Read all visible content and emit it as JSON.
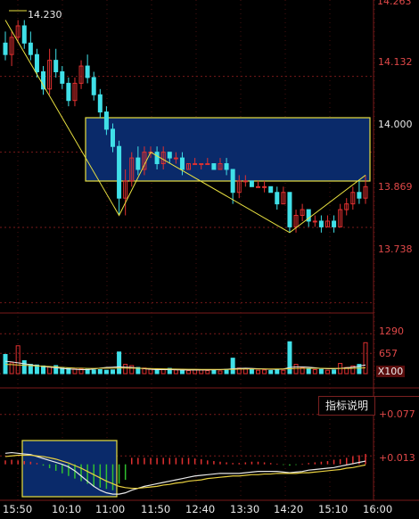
{
  "chart_data": [
    {
      "type": "candlestick",
      "title": "",
      "ylim": [
        13.72,
        14.265
      ],
      "y_ticks": [
        "13.738",
        "13.869",
        "14.000",
        "14.132"
      ],
      "top_partial_tick": "14.263",
      "high_marker": "14.230",
      "candles": [
        [
          14.19,
          14.17,
          14.21,
          14.16
        ],
        [
          14.17,
          14.2,
          14.21,
          14.15
        ],
        [
          14.2,
          14.22,
          14.23,
          14.19
        ],
        [
          14.22,
          14.19,
          14.23,
          14.18
        ],
        [
          14.19,
          14.17,
          14.21,
          14.16
        ],
        [
          14.17,
          14.14,
          14.18,
          14.13
        ],
        [
          14.14,
          14.11,
          14.15,
          14.1
        ],
        [
          14.11,
          14.16,
          14.18,
          14.1
        ],
        [
          14.16,
          14.14,
          14.18,
          14.13
        ],
        [
          14.14,
          14.12,
          14.15,
          14.11
        ],
        [
          14.12,
          14.09,
          14.13,
          14.08
        ],
        [
          14.09,
          14.12,
          14.13,
          14.08
        ],
        [
          14.12,
          14.15,
          14.16,
          14.11
        ],
        [
          14.15,
          14.13,
          14.17,
          14.12
        ],
        [
          14.13,
          14.1,
          14.14,
          14.09
        ],
        [
          14.1,
          14.07,
          14.11,
          14.06
        ],
        [
          14.07,
          14.04,
          14.08,
          14.03
        ],
        [
          14.04,
          14.01,
          14.05,
          14.0
        ],
        [
          14.01,
          13.92,
          14.02,
          13.89
        ],
        [
          13.92,
          13.95,
          13.97,
          13.89
        ],
        [
          13.95,
          13.99,
          14.0,
          13.94
        ],
        [
          13.99,
          13.97,
          14.01,
          13.96
        ],
        [
          13.97,
          14.0,
          14.01,
          13.96
        ],
        [
          14.0,
          14.0,
          14.01,
          13.99
        ],
        [
          14.0,
          13.98,
          14.01,
          13.97
        ],
        [
          13.98,
          14.0,
          14.01,
          13.97
        ],
        [
          14.0,
          13.99,
          14.0,
          13.98
        ],
        [
          13.99,
          13.99,
          14.0,
          13.98
        ],
        [
          13.99,
          13.97,
          14.0,
          13.96
        ],
        [
          13.97,
          13.98,
          13.98,
          13.97
        ],
        [
          13.98,
          13.98,
          13.99,
          13.98
        ],
        [
          13.98,
          13.98,
          13.98,
          13.97
        ],
        [
          13.98,
          13.98,
          13.99,
          13.98
        ],
        [
          13.98,
          13.97,
          13.98,
          13.97
        ],
        [
          13.97,
          13.98,
          13.99,
          13.97
        ],
        [
          13.98,
          13.97,
          13.99,
          13.96
        ],
        [
          13.97,
          13.93,
          13.97,
          13.91
        ],
        [
          13.93,
          13.95,
          13.96,
          13.92
        ],
        [
          13.95,
          13.95,
          13.96,
          13.94
        ],
        [
          13.95,
          13.94,
          13.95,
          13.94
        ],
        [
          13.94,
          13.94,
          13.95,
          13.94
        ],
        [
          13.94,
          13.94,
          13.95,
          13.93
        ],
        [
          13.94,
          13.93,
          13.94,
          13.93
        ],
        [
          13.93,
          13.91,
          13.94,
          13.9
        ],
        [
          13.91,
          13.93,
          13.94,
          13.91
        ],
        [
          13.93,
          13.87,
          13.93,
          13.86
        ],
        [
          13.87,
          13.89,
          13.9,
          13.86
        ],
        [
          13.89,
          13.9,
          13.91,
          13.88
        ],
        [
          13.9,
          13.88,
          13.9,
          13.87
        ],
        [
          13.88,
          13.88,
          13.89,
          13.87
        ],
        [
          13.88,
          13.87,
          13.89,
          13.86
        ],
        [
          13.87,
          13.88,
          13.89,
          13.87
        ],
        [
          13.88,
          13.87,
          13.89,
          13.86
        ],
        [
          13.87,
          13.9,
          13.91,
          13.87
        ],
        [
          13.9,
          13.91,
          13.92,
          13.89
        ],
        [
          13.91,
          13.93,
          13.94,
          13.9
        ],
        [
          13.93,
          13.92,
          13.95,
          13.91
        ],
        [
          13.92,
          13.94,
          13.96,
          13.91
        ]
      ]
    },
    {
      "type": "bar",
      "title": "",
      "unit_label": "X100",
      "y_ticks": [
        "1290",
        "657"
      ],
      "ylim": [
        0,
        1700
      ],
      "values": [
        620,
        350,
        900,
        420,
        300,
        280,
        250,
        220,
        260,
        200,
        180,
        150,
        160,
        140,
        120,
        130,
        110,
        120,
        700,
        300,
        260,
        200,
        180,
        150,
        140,
        130,
        170,
        120,
        110,
        100,
        130,
        120,
        100,
        110,
        90,
        140,
        500,
        180,
        150,
        130,
        110,
        120,
        100,
        140,
        110,
        1030,
        300,
        200,
        160,
        130,
        140,
        110,
        120,
        330,
        200,
        250,
        300,
        1000
      ],
      "ma_short": [
        400,
        380,
        350,
        320,
        290,
        260,
        230,
        210,
        190,
        170,
        150,
        140,
        130,
        130,
        150,
        180,
        200,
        210,
        220,
        210,
        200,
        180,
        160,
        140,
        130,
        130,
        130,
        125,
        120,
        118,
        118,
        118,
        120,
        125,
        130,
        140,
        160,
        170,
        175,
        170,
        160,
        150,
        140,
        140,
        150,
        200,
        220,
        220,
        210,
        190,
        170,
        160,
        160,
        170,
        190,
        210,
        240,
        280
      ],
      "ma_long": [
        300,
        290,
        280,
        270,
        260,
        250,
        240,
        230,
        215,
        200,
        190,
        180,
        175,
        170,
        170,
        172,
        175,
        178,
        180,
        180,
        178,
        175,
        170,
        165,
        160,
        156,
        152,
        148,
        145,
        142,
        140,
        138,
        137,
        136,
        136,
        138,
        142,
        146,
        150,
        152,
        152,
        151,
        150,
        150,
        152,
        160,
        168,
        172,
        174,
        174,
        172,
        170,
        168,
        168,
        170,
        174,
        180,
        188
      ]
    },
    {
      "type": "macd",
      "title": "",
      "y_ticks": [
        "+0.077",
        "+0.013"
      ],
      "ylim": [
        -0.05,
        0.1
      ],
      "hist": [
        0.006,
        0.007,
        0.006,
        0.005,
        0.004,
        0.002,
        -0.002,
        -0.006,
        -0.01,
        -0.014,
        -0.018,
        -0.022,
        -0.026,
        -0.03,
        -0.034,
        -0.036,
        -0.038,
        -0.04,
        -0.03,
        -0.024,
        0.01,
        0.01,
        0.01,
        0.01,
        0.01,
        0.01,
        0.01,
        0.01,
        0.01,
        0.01,
        0.009,
        0.008,
        0.006,
        0.005,
        0.004,
        0.003,
        0.002,
        0.002,
        0.003,
        0.004,
        0.004,
        0.003,
        0.002,
        0.001,
        -0.001,
        -0.002,
        -0.001,
        0.001,
        0.002,
        0.003,
        0.004,
        0.005,
        0.007,
        0.008,
        0.01,
        0.012,
        0.014,
        0.016
      ],
      "dif": [
        0.017,
        0.018,
        0.017,
        0.016,
        0.015,
        0.012,
        0.009,
        0.006,
        0.003,
        0.0,
        -0.004,
        -0.01,
        -0.018,
        -0.026,
        -0.034,
        -0.04,
        -0.044,
        -0.046,
        -0.046,
        -0.044,
        -0.04,
        -0.037,
        -0.034,
        -0.032,
        -0.03,
        -0.028,
        -0.026,
        -0.024,
        -0.022,
        -0.02,
        -0.018,
        -0.017,
        -0.016,
        -0.015,
        -0.014,
        -0.014,
        -0.014,
        -0.014,
        -0.013,
        -0.012,
        -0.011,
        -0.011,
        -0.011,
        -0.011,
        -0.012,
        -0.013,
        -0.012,
        -0.011,
        -0.009,
        -0.008,
        -0.007,
        -0.006,
        -0.005,
        -0.003,
        -0.001,
        0.001,
        0.003,
        0.005
      ],
      "dea": [
        0.012,
        0.013,
        0.014,
        0.014,
        0.014,
        0.013,
        0.012,
        0.01,
        0.008,
        0.005,
        0.002,
        -0.002,
        -0.006,
        -0.011,
        -0.016,
        -0.021,
        -0.026,
        -0.03,
        -0.034,
        -0.036,
        -0.037,
        -0.037,
        -0.036,
        -0.035,
        -0.034,
        -0.032,
        -0.031,
        -0.029,
        -0.028,
        -0.026,
        -0.025,
        -0.024,
        -0.022,
        -0.021,
        -0.02,
        -0.019,
        -0.018,
        -0.018,
        -0.017,
        -0.016,
        -0.016,
        -0.015,
        -0.015,
        -0.014,
        -0.014,
        -0.014,
        -0.014,
        -0.013,
        -0.013,
        -0.012,
        -0.011,
        -0.01,
        -0.009,
        -0.008,
        -0.006,
        -0.005,
        -0.003,
        -0.001
      ]
    }
  ],
  "x_axis": {
    "labels": [
      "15:50",
      "10:10",
      "11:00",
      "11:50",
      "12:40",
      "13:30",
      "14:20",
      "15:10",
      "16:00"
    ]
  },
  "indicator_button": {
    "label": "指标说明"
  },
  "colors": {
    "up": "#e03030",
    "down": "#40e0e8",
    "box": "#0a2a6a",
    "box_border": "#e8e040",
    "grid": "#7a1a1a",
    "axis_text": "#e04848",
    "trend": "#e8e040",
    "ma_short": "#e8e8e8",
    "ma_long": "#e8d040",
    "macd_up": "#e03030",
    "macd_down": "#30c030"
  }
}
